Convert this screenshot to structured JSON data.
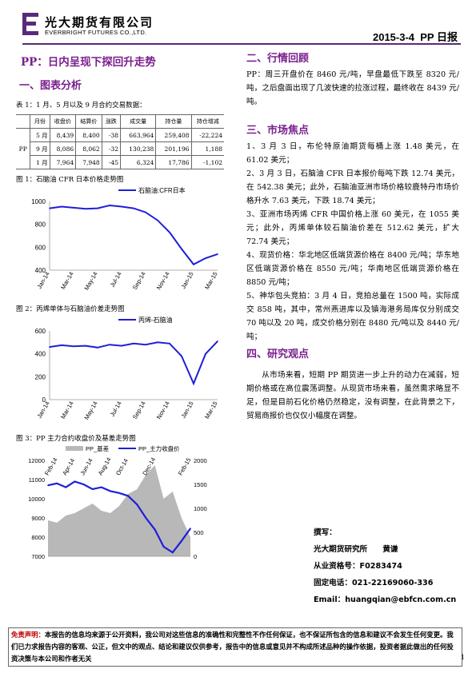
{
  "header": {
    "company_cn": "光大期货有限公司",
    "company_en": "EVERBRIGHT FUTURES CO.,LTD.",
    "date": "2015-3-4",
    "report": "PP 日报"
  },
  "title": "PP：日内呈现下探回升走势",
  "section_left": "一、图表分析",
  "table_caption": "表 1：1 月、5 月以及 9 月合约交易数据：",
  "table": {
    "headers": [
      "",
      "月份",
      "收盘价",
      "结算价",
      "涨跌",
      "成交量",
      "持仓量",
      "持仓增减"
    ],
    "product": "PP",
    "rows": [
      [
        "5 月",
        "8,439",
        "8,400",
        "-38",
        "663,964",
        "259,408",
        "-22,224"
      ],
      [
        "9 月",
        "8,086",
        "8,062",
        "-32",
        "130,238",
        "201,196",
        "1,188"
      ],
      [
        "1 月",
        "7,964",
        "7,948",
        "-45",
        "6,324",
        "17,786",
        "-1,102"
      ]
    ]
  },
  "fig1": {
    "caption": "图 1：石脑油 CFR 日本价格走势图",
    "legend": "石脑油:CFR日本"
  },
  "fig2": {
    "caption": "图 2：丙烯单体与石脑油价差走势图",
    "legend": "丙烯-石脑油"
  },
  "fig3": {
    "caption": "图 3：PP 主力合约收盘价及基差走势图",
    "legend_a": "PP_基差",
    "legend_b": "PP_主力收盘价"
  },
  "chart_data": [
    {
      "type": "line",
      "legend_position": "top-right",
      "series": [
        {
          "name": "石脑油:CFR日本",
          "color": "#1f1fd6"
        }
      ],
      "x": [
        "Jan-14",
        "Feb-14",
        "Mar-14",
        "Apr-14",
        "May-14",
        "Jun-14",
        "Jul-14",
        "Aug-14",
        "Sep-14",
        "Oct-14",
        "Nov-14",
        "Dec-14",
        "Jan-15",
        "Feb-15",
        "Mar-15"
      ],
      "x_ticks": [
        "Jan-14",
        "Mar-14",
        "May-14",
        "Jul-14",
        "Sep-14",
        "Nov-14",
        "Jan-15",
        "Mar-15"
      ],
      "values": [
        940,
        955,
        945,
        935,
        940,
        965,
        955,
        940,
        905,
        835,
        730,
        585,
        450,
        505,
        540
      ],
      "ylim": [
        400,
        1000
      ],
      "y_ticks": [
        400,
        600,
        800,
        1000
      ]
    },
    {
      "type": "line",
      "legend_position": "top-right",
      "series": [
        {
          "name": "丙烯-石脑油",
          "color": "#1f1fd6"
        }
      ],
      "x": [
        "Jan-14",
        "Feb-14",
        "Mar-14",
        "Apr-14",
        "May-14",
        "Jun-14",
        "Jul-14",
        "Aug-14",
        "Sep-14",
        "Oct-14",
        "Nov-14",
        "Dec-14",
        "Jan-15",
        "Feb-15",
        "Mar-15"
      ],
      "x_ticks": [
        "Jan-14",
        "Mar-14",
        "May-14",
        "Jul-14",
        "Sep-14",
        "Nov-14",
        "Jan-15",
        "Mar-15"
      ],
      "values": [
        460,
        475,
        465,
        470,
        455,
        480,
        470,
        490,
        480,
        500,
        490,
        380,
        140,
        400,
        510
      ],
      "ylim": [
        0,
        600
      ],
      "y_ticks": [
        0,
        200,
        400,
        600
      ]
    },
    {
      "type": "line",
      "legend_position": "top",
      "series": [
        {
          "name": "PP_基差",
          "type": "area",
          "axis": "right",
          "color": "#b8b8b8",
          "values": [
            750,
            700,
            850,
            900,
            1000,
            1100,
            950,
            900,
            1050,
            1300,
            1400,
            1700,
            1900,
            1200,
            1350,
            800,
            400
          ]
        },
        {
          "name": "PP_主力收盘价",
          "type": "line",
          "axis": "left",
          "color": "#1f1fd6",
          "values": [
            10700,
            10800,
            10600,
            10900,
            10750,
            10500,
            10600,
            10400,
            10300,
            10150,
            9700,
            9000,
            8400,
            7500,
            7200,
            7800,
            8450
          ]
        }
      ],
      "x": [
        "Feb-14",
        "Mar-14",
        "Apr-14",
        "May-14",
        "Jun-14",
        "Jul-14",
        "Aug-14",
        "Sep-14",
        "Oct-14",
        "Nov-14",
        "Nov-14",
        "Dec-14",
        "Dec-14",
        "Jan-15",
        "Jan-15",
        "Feb-15",
        "Mar-15"
      ],
      "x_ticks": [
        "Feb-14",
        "Apr-14",
        "Jun-14",
        "Aug-14",
        "Oct-14",
        "Dec-14",
        "Feb-15"
      ],
      "ylim": [
        7000,
        12000
      ],
      "y_ticks": [
        7000,
        8000,
        9000,
        10000,
        11000,
        12000
      ],
      "y2lim": [
        0,
        2000
      ],
      "y2_ticks": [
        0,
        500,
        1000,
        1500,
        2000
      ]
    }
  ],
  "right": {
    "sec2": "二、行情回顾",
    "review": "PP：周三开盘价在 8460 元/吨，早盘最低下跌至 8320 元/吨，之后盘面出现了几波快速的拉涨过程，最终收在 8439 元/吨。",
    "sec3": "三、市场焦点",
    "focus": [
      "1、3 月 3 日，布伦特原油期货每桶上涨 1.48 美元，在 61.02 美元；",
      "2、3 月 3 日，石脑油 CFR 日本报价每吨下跌 12.74 美元，在 542.38 美元；此外，石脑油亚洲市场价格较鹿特丹市场价格升水 7.63 美元，下跌 18.74 美元；",
      "3、亚洲市场丙烯 CFR 中国价格上涨 60 美元，在 1055 美元；此外，丙烯单体较石脑油价差在 512.62 美元，扩大 72.74 美元；",
      "4、现货价格：华北地区低端货源价格在 8400 元/吨；华东地区低端货源价格在 8550 元/吨；华南地区低端货源价格在 8850 元/吨；",
      "5、神华包头竞拍：3 月 4 日，竞拍总量在 1500 吨，实际成交 858 吨，其中，常州燕进库以及镇海港务局库仅分别成交 70 吨以及 20 吨，成交价格分别在 8480 元/吨以及 8440 元/吨；"
    ],
    "sec4": "四、研究观点",
    "view": "从市场来看，短期 PP 期货进一步上升的动力在减弱，短期价格或在高位震荡调整。从现货市场来看，虽然需求略显不足，但是目前石化价格仍然稳定，没有调整，在此背景之下，贸易商报价也仅仅小幅度在调整。"
  },
  "author": {
    "l1": "撰写：",
    "l2": "光大期货研究所　　黄谦",
    "l3": "从业资格号：F0283474",
    "l4": "固定电话：021-22169060-336",
    "l5": "Email：huangqian@ebfcn.com.cn"
  },
  "disclaimer": {
    "label": "免责声明：",
    "text": "本报告的信息均来源于公开资料，我公司对这些信息的准确性和完整性不作任何保证，也不保证所包含的信息和建议不会发生任何变更。我们已力求报告内容的客观、公正，但文中的观点、结论和建议仅供参考，报告中的信息或意见并不构成所述品种的操作依据，投资者据此做出的任何投资决策与本公司和作者无关"
  },
  "page": "1"
}
